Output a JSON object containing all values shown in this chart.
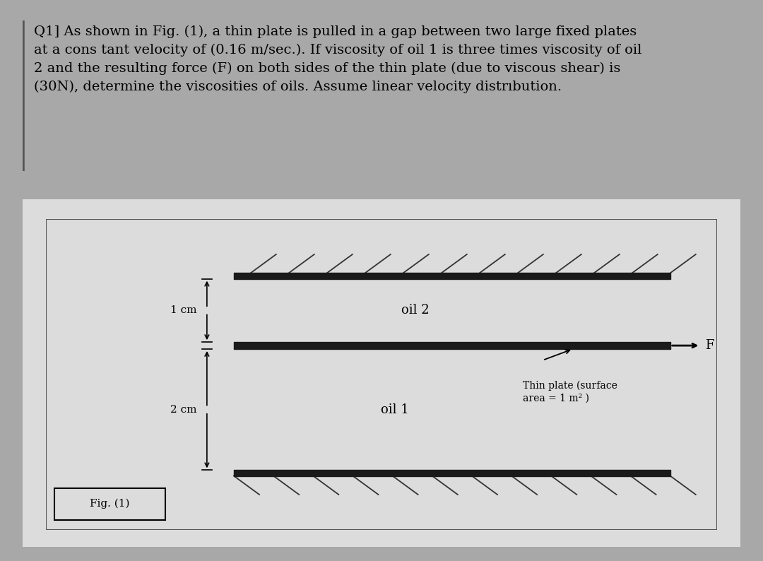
{
  "outer_bg": "#a8a8a8",
  "top_dark_bar_color": "#2a2a2a",
  "text_box_bg": "#e8e8e8",
  "separator_color": "#2a2a2a",
  "diagram_outer_bg": "#888888",
  "diagram_bg": "#dcdcdc",
  "diagram_border_color": "#1a1a1a",
  "plate_color": "#1a1a1a",
  "hatch_color": "#333333",
  "question_lines": [
    "Q1] As sħown in Fig. (1), a thin plate is pulled in a gap between two large fixed plates",
    "at a cons tant velocity of (0.16 m/sec.). If viscosity of oil 1 is three times viscosity of oil",
    "2 and the resulting force (F) on both sides of the thin plate (due to viscous shear) is",
    "(30N), determine the viscosities of oils. Assume linear velocity distrıbution."
  ],
  "oil2_label": "oil 2",
  "oil1_label": "oil 1",
  "f_label": "F",
  "thin_plate_label_line1": "Thin plate (surface",
  "thin_plate_label_line2": "area = 1 m² )",
  "dim1_label": "1 cm",
  "dim2_label": "2 cm",
  "fig_label": "Fig. (1)"
}
